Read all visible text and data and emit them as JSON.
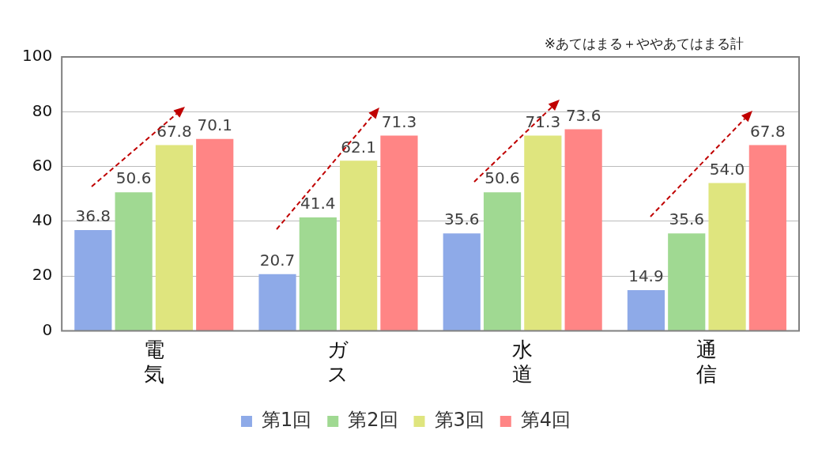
{
  "chart_data": {
    "type": "bar",
    "categories": [
      "電気",
      "ガス",
      "水道",
      "通信"
    ],
    "series": [
      {
        "name": "第1回",
        "color": "#8eaae8",
        "values": [
          36.8,
          20.7,
          35.6,
          14.9
        ]
      },
      {
        "name": "第2回",
        "color": "#a0d992",
        "values": [
          50.6,
          41.4,
          50.6,
          35.6
        ]
      },
      {
        "name": "第3回",
        "color": "#dfe57e",
        "values": [
          67.8,
          62.1,
          71.3,
          54.0
        ]
      },
      {
        "name": "第4回",
        "color": "#ff8585",
        "values": [
          70.1,
          71.3,
          73.6,
          67.8
        ]
      }
    ],
    "ylim": [
      0,
      100
    ],
    "yticks": [
      0,
      20,
      40,
      60,
      80,
      100
    ],
    "grid": "y",
    "legend": "bottom",
    "value_labels": [
      [
        "36.8",
        "20.7",
        "35.6",
        "14.9"
      ],
      [
        "50.6",
        "41.4",
        "50.6",
        "35.6"
      ],
      [
        "67.8",
        "62.1",
        "71.3",
        "54.0"
      ],
      [
        "70.1",
        "71.3",
        "73.6",
        "67.8"
      ]
    ],
    "annotations": [
      "※あてはまる＋ややあてはまる計"
    ]
  }
}
